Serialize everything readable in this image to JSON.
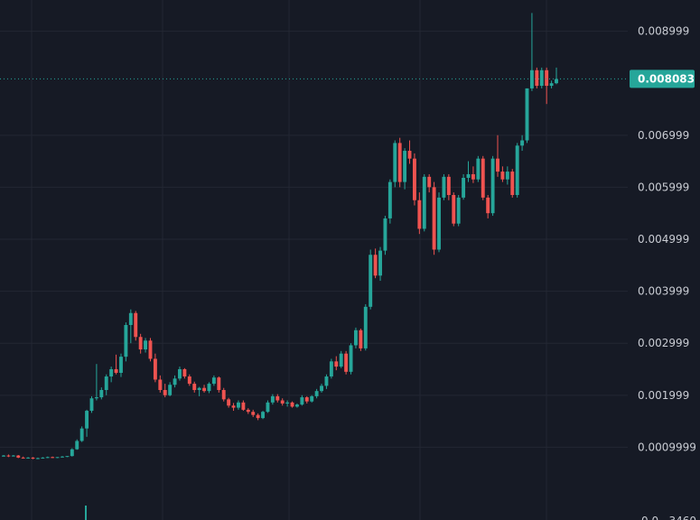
{
  "chart_data": {
    "type": "candlestick",
    "title": "",
    "xlabel": "",
    "ylabel": "",
    "ylim": [
      -0.0004,
      0.0096
    ],
    "y_ticks": [
      {
        "value": 0.0009999,
        "label": "0.0009999"
      },
      {
        "value": 0.001999,
        "label": "0.001999"
      },
      {
        "value": 0.002999,
        "label": "0.002999"
      },
      {
        "value": 0.003999,
        "label": "0.003999"
      },
      {
        "value": 0.004999,
        "label": "0.004999"
      },
      {
        "value": 0.005999,
        "label": "0.005999"
      },
      {
        "value": 0.006999,
        "label": "0.006999"
      },
      {
        "value": 0.008999,
        "label": "0.008999"
      }
    ],
    "partial_bottom_label": "0.0...3460",
    "last_price": {
      "value": 0.008083,
      "label": "0.008083"
    },
    "grid": true,
    "colors": {
      "up": "#26a69a",
      "down": "#ef5350",
      "background": "#161a25",
      "grid": "#232733",
      "last_price": "#26a69a"
    },
    "candles": [
      [
        0.00082,
        0.00085,
        0.00082,
        0.00084
      ],
      [
        0.00084,
        0.00086,
        0.00081,
        0.00083
      ],
      [
        0.00083,
        0.00085,
        0.00082,
        0.00084
      ],
      [
        0.00084,
        0.00085,
        0.00079,
        0.0008
      ],
      [
        0.0008,
        0.00082,
        0.00078,
        0.00079
      ],
      [
        0.00079,
        0.00081,
        0.00078,
        0.0008
      ],
      [
        0.0008,
        0.00081,
        0.00077,
        0.00078
      ],
      [
        0.00078,
        0.0008,
        0.00077,
        0.00079
      ],
      [
        0.00079,
        0.00081,
        0.00078,
        0.0008
      ],
      [
        0.0008,
        0.00082,
        0.00079,
        0.00081
      ],
      [
        0.00081,
        0.00082,
        0.00079,
        0.0008
      ],
      [
        0.0008,
        0.00081,
        0.00079,
        0.00081
      ],
      [
        0.00081,
        0.00083,
        0.0008,
        0.00082
      ],
      [
        0.00082,
        0.00083,
        0.00081,
        0.00083
      ],
      [
        0.00083,
        0.00098,
        0.00082,
        0.00096
      ],
      [
        0.00096,
        0.00115,
        0.00095,
        0.00112
      ],
      [
        0.00112,
        0.0014,
        0.0011,
        0.00136
      ],
      [
        0.00136,
        0.00172,
        0.0012,
        0.0017
      ],
      [
        0.0017,
        0.00198,
        0.00166,
        0.00194
      ],
      [
        0.00194,
        0.0026,
        0.0019,
        0.00196
      ],
      [
        0.00196,
        0.00215,
        0.00192,
        0.0021
      ],
      [
        0.0021,
        0.0024,
        0.002,
        0.00236
      ],
      [
        0.00236,
        0.00255,
        0.00225,
        0.0025
      ],
      [
        0.0025,
        0.00278,
        0.0024,
        0.00243
      ],
      [
        0.00243,
        0.0028,
        0.00235,
        0.00274
      ],
      [
        0.00274,
        0.0034,
        0.00265,
        0.00335
      ],
      [
        0.00335,
        0.00365,
        0.003,
        0.00358
      ],
      [
        0.00358,
        0.00362,
        0.00305,
        0.00312
      ],
      [
        0.00312,
        0.00318,
        0.0028,
        0.00288
      ],
      [
        0.00288,
        0.0031,
        0.00282,
        0.00305
      ],
      [
        0.00305,
        0.0031,
        0.00265,
        0.0027
      ],
      [
        0.0027,
        0.0028,
        0.00225,
        0.0023
      ],
      [
        0.0023,
        0.00238,
        0.00205,
        0.0021
      ],
      [
        0.0021,
        0.00222,
        0.00196,
        0.002
      ],
      [
        0.002,
        0.00225,
        0.00198,
        0.0022
      ],
      [
        0.0022,
        0.00238,
        0.00215,
        0.00232
      ],
      [
        0.00232,
        0.00255,
        0.00228,
        0.0025
      ],
      [
        0.0025,
        0.00252,
        0.00232,
        0.00236
      ],
      [
        0.00236,
        0.0024,
        0.00218,
        0.00222
      ],
      [
        0.00222,
        0.00226,
        0.00205,
        0.0021
      ],
      [
        0.0021,
        0.00216,
        0.00198,
        0.00214
      ],
      [
        0.00214,
        0.0022,
        0.00205,
        0.00208
      ],
      [
        0.00208,
        0.00225,
        0.00204,
        0.00222
      ],
      [
        0.00222,
        0.00238,
        0.00218,
        0.00234
      ],
      [
        0.00234,
        0.00236,
        0.00205,
        0.0021
      ],
      [
        0.0021,
        0.00214,
        0.00188,
        0.00192
      ],
      [
        0.00192,
        0.00195,
        0.00176,
        0.0018
      ],
      [
        0.0018,
        0.00185,
        0.0017,
        0.00176
      ],
      [
        0.00176,
        0.0019,
        0.00172,
        0.00186
      ],
      [
        0.00186,
        0.0019,
        0.0017,
        0.00172
      ],
      [
        0.00172,
        0.00175,
        0.00164,
        0.00168
      ],
      [
        0.00168,
        0.00172,
        0.00158,
        0.00162
      ],
      [
        0.00162,
        0.00165,
        0.00152,
        0.00156
      ],
      [
        0.00156,
        0.0017,
        0.00154,
        0.00168
      ],
      [
        0.00168,
        0.0019,
        0.00166,
        0.00186
      ],
      [
        0.00186,
        0.00202,
        0.00182,
        0.00198
      ],
      [
        0.00198,
        0.00202,
        0.00186,
        0.0019
      ],
      [
        0.0019,
        0.00194,
        0.0018,
        0.00184
      ],
      [
        0.00184,
        0.0019,
        0.00178,
        0.00186
      ],
      [
        0.00186,
        0.00188,
        0.00176,
        0.00178
      ],
      [
        0.00178,
        0.00184,
        0.00176,
        0.00182
      ],
      [
        0.00182,
        0.002,
        0.0018,
        0.00196
      ],
      [
        0.00196,
        0.00198,
        0.00184,
        0.00188
      ],
      [
        0.00188,
        0.002,
        0.00186,
        0.00198
      ],
      [
        0.00198,
        0.00212,
        0.00194,
        0.00208
      ],
      [
        0.00208,
        0.00222,
        0.00205,
        0.00218
      ],
      [
        0.00218,
        0.0024,
        0.00212,
        0.00236
      ],
      [
        0.00236,
        0.0027,
        0.00232,
        0.00265
      ],
      [
        0.00265,
        0.00275,
        0.00248,
        0.00255
      ],
      [
        0.00255,
        0.00285,
        0.00252,
        0.0028
      ],
      [
        0.0028,
        0.00285,
        0.0024,
        0.00245
      ],
      [
        0.00245,
        0.003,
        0.0024,
        0.00296
      ],
      [
        0.00296,
        0.0033,
        0.0029,
        0.00325
      ],
      [
        0.00325,
        0.00328,
        0.00285,
        0.0029
      ],
      [
        0.0029,
        0.00375,
        0.00286,
        0.0037
      ],
      [
        0.0037,
        0.0048,
        0.00365,
        0.0047
      ],
      [
        0.0047,
        0.00482,
        0.00425,
        0.0043
      ],
      [
        0.0043,
        0.00485,
        0.0042,
        0.00478
      ],
      [
        0.00478,
        0.00545,
        0.0047,
        0.0054
      ],
      [
        0.0054,
        0.00615,
        0.0053,
        0.0061
      ],
      [
        0.0061,
        0.0069,
        0.006,
        0.00685
      ],
      [
        0.00685,
        0.00695,
        0.006,
        0.0061
      ],
      [
        0.0061,
        0.00675,
        0.00596,
        0.0067
      ],
      [
        0.0067,
        0.0069,
        0.00645,
        0.00655
      ],
      [
        0.00655,
        0.00665,
        0.00565,
        0.00575
      ],
      [
        0.00575,
        0.0059,
        0.0051,
        0.0052
      ],
      [
        0.0052,
        0.00625,
        0.00515,
        0.0062
      ],
      [
        0.0062,
        0.00625,
        0.0059,
        0.006
      ],
      [
        0.006,
        0.0061,
        0.0047,
        0.0048
      ],
      [
        0.0048,
        0.0059,
        0.00475,
        0.0058
      ],
      [
        0.0058,
        0.00625,
        0.00575,
        0.0062
      ],
      [
        0.0062,
        0.00625,
        0.00575,
        0.00585
      ],
      [
        0.00585,
        0.0059,
        0.00525,
        0.0053
      ],
      [
        0.0053,
        0.00585,
        0.00525,
        0.0058
      ],
      [
        0.0058,
        0.00625,
        0.00576,
        0.00618
      ],
      [
        0.00618,
        0.0065,
        0.0061,
        0.00625
      ],
      [
        0.00625,
        0.0064,
        0.00608,
        0.00615
      ],
      [
        0.00615,
        0.0066,
        0.0061,
        0.00655
      ],
      [
        0.00655,
        0.0066,
        0.00575,
        0.0058
      ],
      [
        0.0058,
        0.00585,
        0.0054,
        0.0055
      ],
      [
        0.0055,
        0.0066,
        0.00545,
        0.00655
      ],
      [
        0.00655,
        0.007,
        0.0062,
        0.0063
      ],
      [
        0.0063,
        0.0064,
        0.0061,
        0.00615
      ],
      [
        0.00615,
        0.0064,
        0.00605,
        0.0063
      ],
      [
        0.0063,
        0.00635,
        0.0058,
        0.00585
      ],
      [
        0.00585,
        0.00685,
        0.0058,
        0.0068
      ],
      [
        0.0068,
        0.007,
        0.0067,
        0.0069
      ],
      [
        0.0069,
        0.0079,
        0.00685,
        0.0079
      ],
      [
        0.0079,
        0.00935,
        0.00785,
        0.00825
      ],
      [
        0.00825,
        0.0083,
        0.0079,
        0.00795
      ],
      [
        0.00795,
        0.0083,
        0.0079,
        0.00825
      ],
      [
        0.00825,
        0.0083,
        0.0076,
        0.00795
      ],
      [
        0.00795,
        0.00805,
        0.0079,
        0.008
      ],
      [
        0.008,
        0.0083,
        0.00798,
        0.00808
      ]
    ]
  }
}
